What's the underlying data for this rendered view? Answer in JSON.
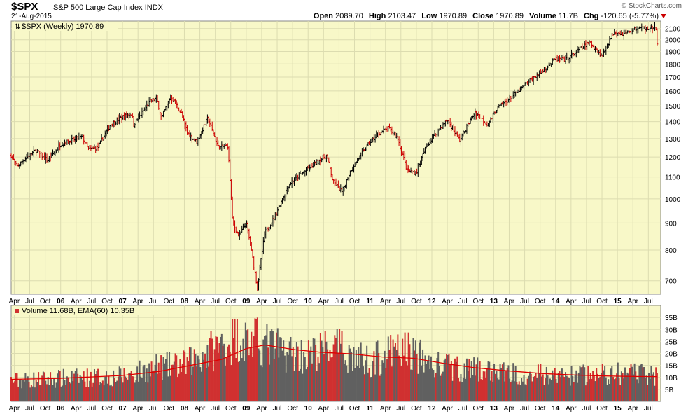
{
  "header": {
    "symbol": "$SPX",
    "name": "S&P 500 Large Cap Index",
    "exchange": "INDX",
    "date": "21-Aug-2015",
    "brand": "© StockCharts.com",
    "open_label": "Open",
    "open": "2089.70",
    "high_label": "High",
    "high": "2103.47",
    "low_label": "Low",
    "low": "1970.89",
    "close_label": "Close",
    "close": "1970.89",
    "volume_label": "Volume",
    "volume": "11.7B",
    "chg_label": "Chg",
    "chg": "-120.65 (-5.77%)"
  },
  "colors": {
    "panel_bg": "#f8f8c8",
    "up": "#000000",
    "down": "#cc0000",
    "ema": "#e00000",
    "vol_up": "#606060",
    "vol_down": "#d03030"
  },
  "chart_data": [
    {
      "type": "ohlc",
      "title": "$SPX (Weekly) 1970.89",
      "yscale": "log",
      "ylim": [
        660,
        2170
      ],
      "yticks": [
        700,
        800,
        900,
        1000,
        1100,
        1200,
        1300,
        1400,
        1500,
        1600,
        1700,
        1800,
        1900,
        2000,
        2100
      ],
      "xlim": [
        2005.2,
        2015.7
      ],
      "x_tick_labels": [
        {
          "x": 2005.25,
          "label": "Apr"
        },
        {
          "x": 2005.5,
          "label": "Jul"
        },
        {
          "x": 2005.75,
          "label": "Oct"
        },
        {
          "x": 2006.0,
          "label": "06"
        },
        {
          "x": 2006.25,
          "label": "Apr"
        },
        {
          "x": 2006.5,
          "label": "Jul"
        },
        {
          "x": 2006.75,
          "label": "Oct"
        },
        {
          "x": 2007.0,
          "label": "07"
        },
        {
          "x": 2007.25,
          "label": "Apr"
        },
        {
          "x": 2007.5,
          "label": "Jul"
        },
        {
          "x": 2007.75,
          "label": "Oct"
        },
        {
          "x": 2008.0,
          "label": "08"
        },
        {
          "x": 2008.25,
          "label": "Apr"
        },
        {
          "x": 2008.5,
          "label": "Jul"
        },
        {
          "x": 2008.75,
          "label": "Oct"
        },
        {
          "x": 2009.0,
          "label": "09"
        },
        {
          "x": 2009.25,
          "label": "Apr"
        },
        {
          "x": 2009.5,
          "label": "Jul"
        },
        {
          "x": 2009.75,
          "label": "Oct"
        },
        {
          "x": 2010.0,
          "label": "10"
        },
        {
          "x": 2010.25,
          "label": "Apr"
        },
        {
          "x": 2010.5,
          "label": "Jul"
        },
        {
          "x": 2010.75,
          "label": "Oct"
        },
        {
          "x": 2011.0,
          "label": "11"
        },
        {
          "x": 2011.25,
          "label": "Apr"
        },
        {
          "x": 2011.5,
          "label": "Jul"
        },
        {
          "x": 2011.75,
          "label": "Oct"
        },
        {
          "x": 2012.0,
          "label": "12"
        },
        {
          "x": 2012.25,
          "label": "Apr"
        },
        {
          "x": 2012.5,
          "label": "Jul"
        },
        {
          "x": 2012.75,
          "label": "Oct"
        },
        {
          "x": 2013.0,
          "label": "13"
        },
        {
          "x": 2013.25,
          "label": "Apr"
        },
        {
          "x": 2013.5,
          "label": "Jul"
        },
        {
          "x": 2013.75,
          "label": "Oct"
        },
        {
          "x": 2014.0,
          "label": "14"
        },
        {
          "x": 2014.25,
          "label": "Apr"
        },
        {
          "x": 2014.5,
          "label": "Jul"
        },
        {
          "x": 2014.75,
          "label": "Oct"
        },
        {
          "x": 2015.0,
          "label": "15"
        },
        {
          "x": 2015.25,
          "label": "Apr"
        },
        {
          "x": 2015.5,
          "label": "Jul"
        }
      ],
      "grid": true,
      "price_path": [
        [
          2005.2,
          1210
        ],
        [
          2005.29,
          1150
        ],
        [
          2005.45,
          1200
        ],
        [
          2005.6,
          1235
        ],
        [
          2005.79,
          1180
        ],
        [
          2006.0,
          1270
        ],
        [
          2006.35,
          1310
        ],
        [
          2006.45,
          1240
        ],
        [
          2006.6,
          1250
        ],
        [
          2006.8,
          1380
        ],
        [
          2007.0,
          1430
        ],
        [
          2007.15,
          1450
        ],
        [
          2007.18,
          1380
        ],
        [
          2007.45,
          1530
        ],
        [
          2007.55,
          1550
        ],
        [
          2007.63,
          1420
        ],
        [
          2007.78,
          1565
        ],
        [
          2007.95,
          1450
        ],
        [
          2008.05,
          1330
        ],
        [
          2008.2,
          1280
        ],
        [
          2008.38,
          1420
        ],
        [
          2008.55,
          1250
        ],
        [
          2008.7,
          1260
        ],
        [
          2008.78,
          900
        ],
        [
          2008.88,
          850
        ],
        [
          2009.0,
          900
        ],
        [
          2009.08,
          800
        ],
        [
          2009.18,
          676
        ],
        [
          2009.3,
          860
        ],
        [
          2009.45,
          920
        ],
        [
          2009.7,
          1070
        ],
        [
          2010.0,
          1140
        ],
        [
          2010.3,
          1210
        ],
        [
          2010.4,
          1080
        ],
        [
          2010.55,
          1030
        ],
        [
          2010.7,
          1140
        ],
        [
          2011.0,
          1280
        ],
        [
          2011.15,
          1330
        ],
        [
          2011.3,
          1360
        ],
        [
          2011.45,
          1300
        ],
        [
          2011.6,
          1130
        ],
        [
          2011.75,
          1120
        ],
        [
          2011.9,
          1250
        ],
        [
          2012.0,
          1300
        ],
        [
          2012.25,
          1410
        ],
        [
          2012.45,
          1290
        ],
        [
          2012.7,
          1460
        ],
        [
          2012.9,
          1380
        ],
        [
          2013.05,
          1480
        ],
        [
          2013.35,
          1580
        ],
        [
          2013.5,
          1640
        ],
        [
          2013.6,
          1680
        ],
        [
          2013.8,
          1750
        ],
        [
          2014.0,
          1840
        ],
        [
          2014.15,
          1830
        ],
        [
          2014.4,
          1920
        ],
        [
          2014.55,
          1980
        ],
        [
          2014.75,
          1860
        ],
        [
          2014.95,
          2080
        ],
        [
          2015.1,
          2050
        ],
        [
          2015.3,
          2100
        ],
        [
          2015.55,
          2110
        ],
        [
          2015.62,
          2090
        ],
        [
          2015.64,
          1971
        ]
      ]
    },
    {
      "type": "bar",
      "title": "Volume 11.68B, EMA(60) 10.35B",
      "units": "billions",
      "ylim": [
        0,
        40
      ],
      "yticks": [
        5,
        10,
        15,
        20,
        25,
        30,
        35
      ],
      "ytick_labels": [
        "5B",
        "10B",
        "15B",
        "20B",
        "25B",
        "30B",
        "35B"
      ],
      "volume_path": [
        [
          2005.2,
          9
        ],
        [
          2006.0,
          10
        ],
        [
          2007.0,
          11
        ],
        [
          2007.6,
          15
        ],
        [
          2008.0,
          16
        ],
        [
          2008.7,
          26
        ],
        [
          2008.85,
          28
        ],
        [
          2009.2,
          26
        ],
        [
          2009.6,
          22
        ],
        [
          2010.0,
          20
        ],
        [
          2010.4,
          24
        ],
        [
          2010.8,
          19
        ],
        [
          2011.0,
          18
        ],
        [
          2011.6,
          23
        ],
        [
          2012.0,
          16
        ],
        [
          2012.6,
          14
        ],
        [
          2013.0,
          13
        ],
        [
          2013.6,
          12
        ],
        [
          2014.0,
          11
        ],
        [
          2014.7,
          12
        ],
        [
          2015.0,
          12
        ],
        [
          2015.64,
          11.7
        ]
      ],
      "ema_path": [
        [
          2005.2,
          9.2
        ],
        [
          2006.0,
          9.6
        ],
        [
          2007.0,
          10.8
        ],
        [
          2007.6,
          12.5
        ],
        [
          2008.0,
          14.5
        ],
        [
          2008.6,
          17.5
        ],
        [
          2009.0,
          22
        ],
        [
          2009.3,
          23.5
        ],
        [
          2009.8,
          21.5
        ],
        [
          2010.2,
          20.5
        ],
        [
          2010.7,
          19.8
        ],
        [
          2011.2,
          18.5
        ],
        [
          2011.7,
          18
        ],
        [
          2012.2,
          15.8
        ],
        [
          2012.7,
          14
        ],
        [
          2013.2,
          12.8
        ],
        [
          2013.8,
          11.6
        ],
        [
          2014.3,
          11
        ],
        [
          2014.8,
          10.6
        ],
        [
          2015.3,
          10.4
        ],
        [
          2015.64,
          10.35
        ]
      ]
    }
  ]
}
